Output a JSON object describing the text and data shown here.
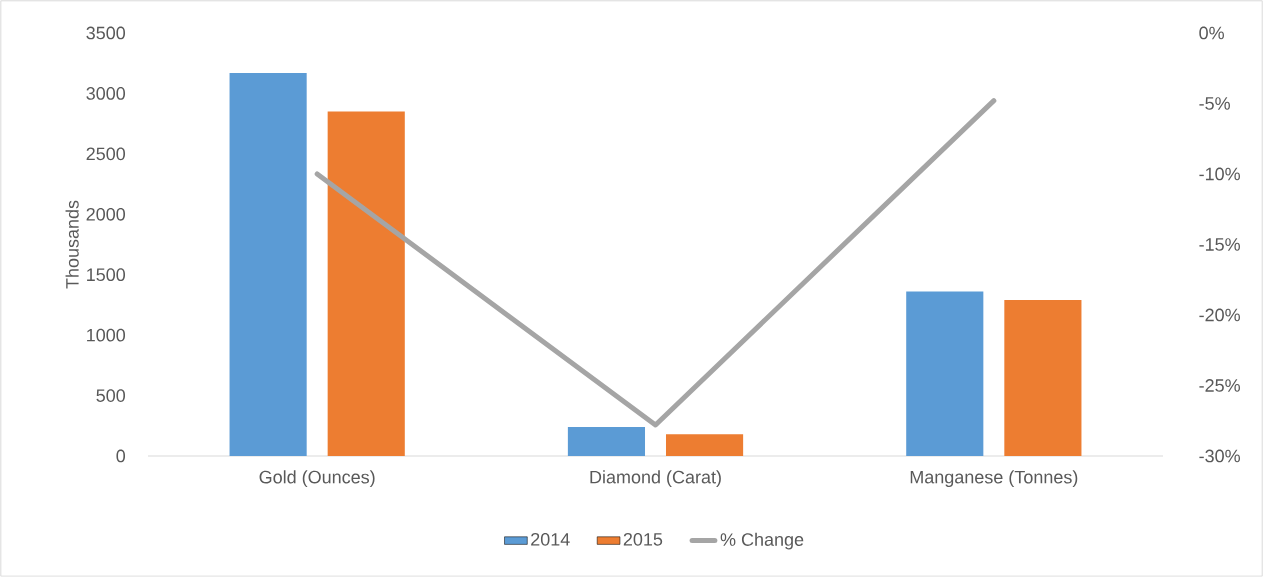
{
  "chart_data": {
    "type": "bar",
    "ylabel": "Thousands",
    "categories": [
      "Gold (Ounces)",
      "Diamond (Carat)",
      "Manganese (Tonnes)"
    ],
    "series": [
      {
        "name": "2014",
        "color": "#5b9bd5",
        "values": [
          3170,
          240,
          1360
        ]
      },
      {
        "name": "2015",
        "color": "#ed7d31",
        "values": [
          2850,
          180,
          1290
        ]
      },
      {
        "name": "% Change",
        "color": "#a5a5a5",
        "type": "line",
        "axis": "y2",
        "values": [
          -10,
          -27.8,
          -4.8
        ]
      }
    ],
    "ylim": [
      0,
      3500
    ],
    "yticks": [
      0,
      500,
      1000,
      1500,
      2000,
      2500,
      3000,
      3500
    ],
    "y2lim": [
      -30,
      0
    ],
    "y2ticks": [
      {
        "value": -30,
        "label": "-30%"
      },
      {
        "value": -25,
        "label": "-25%"
      },
      {
        "value": -20,
        "label": "-20%"
      },
      {
        "value": -15,
        "label": "-15%"
      },
      {
        "value": -10,
        "label": "-10%"
      },
      {
        "value": -5,
        "label": "-5%"
      },
      {
        "value": 0,
        "label": "0%"
      }
    ],
    "legend": "bottom"
  }
}
